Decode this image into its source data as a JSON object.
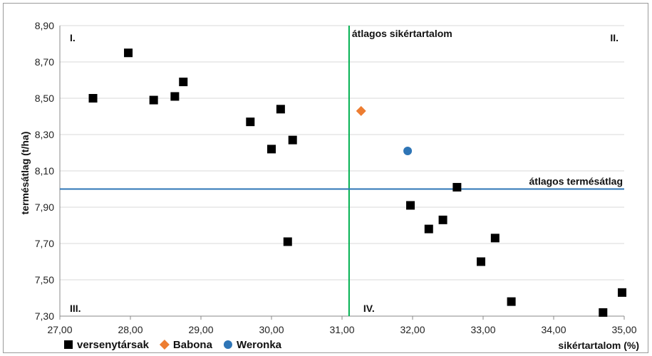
{
  "chart_data": {
    "type": "scatter",
    "title": "",
    "xlabel": "sikértartalom (%)",
    "ylabel": "termésátlag (t/ha)",
    "xlim": [
      27.0,
      35.0
    ],
    "ylim": [
      7.3,
      8.9
    ],
    "x_ticks": [
      "27,00",
      "28,00",
      "29,00",
      "30,00",
      "31,00",
      "32,00",
      "33,00",
      "34,00",
      "35,00"
    ],
    "y_ticks": [
      "7,30",
      "7,50",
      "7,70",
      "7,90",
      "8,10",
      "8,30",
      "8,50",
      "8,70",
      "8,90"
    ],
    "grid": true,
    "legend_position": "bottom-left",
    "series": [
      {
        "name": "versenytársak",
        "marker": "square",
        "color": "#000000",
        "points": [
          {
            "x": 27.47,
            "y": 8.5
          },
          {
            "x": 27.97,
            "y": 8.75
          },
          {
            "x": 28.33,
            "y": 8.49
          },
          {
            "x": 28.63,
            "y": 8.51
          },
          {
            "x": 28.75,
            "y": 8.59
          },
          {
            "x": 29.7,
            "y": 8.37
          },
          {
            "x": 30.0,
            "y": 8.22
          },
          {
            "x": 30.13,
            "y": 8.44
          },
          {
            "x": 30.3,
            "y": 8.27
          },
          {
            "x": 30.23,
            "y": 7.71
          },
          {
            "x": 31.97,
            "y": 7.91
          },
          {
            "x": 32.23,
            "y": 7.78
          },
          {
            "x": 32.43,
            "y": 7.83
          },
          {
            "x": 32.63,
            "y": 8.01
          },
          {
            "x": 32.97,
            "y": 7.6
          },
          {
            "x": 33.17,
            "y": 7.73
          },
          {
            "x": 33.4,
            "y": 7.38
          },
          {
            "x": 34.7,
            "y": 7.32
          },
          {
            "x": 34.97,
            "y": 7.43
          }
        ]
      },
      {
        "name": "Babona",
        "marker": "diamond",
        "color": "#ED7D31",
        "points": [
          {
            "x": 31.27,
            "y": 8.43
          }
        ]
      },
      {
        "name": "Weronka",
        "marker": "circle",
        "color": "#2E75B6",
        "points": [
          {
            "x": 31.93,
            "y": 8.21
          }
        ]
      }
    ],
    "reference_lines": [
      {
        "axis": "x",
        "value": 31.1,
        "label": "átlagos sikértartalom",
        "color": "#00B050"
      },
      {
        "axis": "y",
        "value": 8.0,
        "label": "átlagos termésátlag",
        "color": "#2E75B6"
      }
    ],
    "quadrant_labels": [
      "I.",
      "II.",
      "III.",
      "IV."
    ]
  }
}
